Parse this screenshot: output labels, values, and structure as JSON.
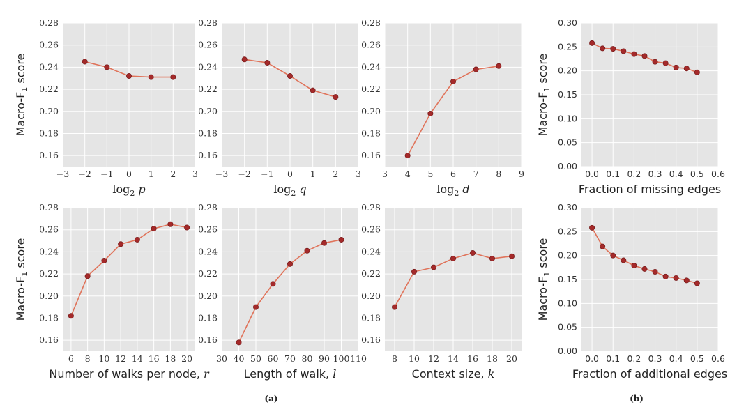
{
  "figure_labels": {
    "a": "(a)",
    "b": "(b)"
  },
  "chart_data": [
    {
      "id": "p",
      "type": "line",
      "xlabel": "log2 p",
      "xlabel_main": "log",
      "xlabel_sub": "2",
      "xlabel_var": " p",
      "ylabel": "Macro-F1 score",
      "xlim": [
        -3,
        3
      ],
      "ylim": [
        0.15,
        0.28
      ],
      "xticks": [
        "−3",
        "−2",
        "−1",
        "0",
        "1",
        "2",
        "3"
      ],
      "yticks": [
        "0.16",
        "0.18",
        "0.20",
        "0.22",
        "0.24",
        "0.26",
        "0.28"
      ],
      "x": [
        -2,
        -1,
        0,
        1,
        2
      ],
      "y": [
        0.245,
        0.24,
        0.232,
        0.231,
        0.231
      ]
    },
    {
      "id": "q",
      "type": "line",
      "xlabel": "log2 q",
      "xlabel_main": "log",
      "xlabel_sub": "2",
      "xlabel_var": " q",
      "ylabel": "",
      "xlim": [
        -3,
        3
      ],
      "ylim": [
        0.15,
        0.28
      ],
      "xticks": [
        "−3",
        "−2",
        "−1",
        "0",
        "1",
        "2",
        "3"
      ],
      "yticks": [
        "0.16",
        "0.18",
        "0.20",
        "0.22",
        "0.24",
        "0.26",
        "0.28"
      ],
      "x": [
        -2,
        -1,
        0,
        1,
        2
      ],
      "y": [
        0.247,
        0.244,
        0.232,
        0.219,
        0.213
      ]
    },
    {
      "id": "d",
      "type": "line",
      "xlabel": "log2 d",
      "xlabel_main": "log",
      "xlabel_sub": "2",
      "xlabel_var": " d",
      "ylabel": "",
      "xlim": [
        3,
        9
      ],
      "ylim": [
        0.15,
        0.28
      ],
      "xticks": [
        "3",
        "4",
        "5",
        "6",
        "7",
        "8",
        "9"
      ],
      "yticks": [
        "0.16",
        "0.18",
        "0.20",
        "0.22",
        "0.24",
        "0.26",
        "0.28"
      ],
      "x": [
        4,
        5,
        6,
        7,
        8
      ],
      "y": [
        0.16,
        0.198,
        0.227,
        0.238,
        0.241
      ]
    },
    {
      "id": "missing1",
      "type": "line",
      "xlabel": "Fraction of missing edges",
      "ylabel": "Macro-F1 score",
      "xlim": [
        -0.05,
        0.6
      ],
      "ylim": [
        0.0,
        0.3
      ],
      "xticks": [
        "0.0",
        "0.1",
        "0.2",
        "0.3",
        "0.4",
        "0.5",
        "0.6"
      ],
      "yticks": [
        "0.00",
        "0.05",
        "0.10",
        "0.15",
        "0.20",
        "0.25",
        "0.30"
      ],
      "x": [
        0.0,
        0.05,
        0.1,
        0.15,
        0.2,
        0.25,
        0.3,
        0.35,
        0.4,
        0.45,
        0.5
      ],
      "y": [
        0.258,
        0.247,
        0.246,
        0.241,
        0.235,
        0.231,
        0.219,
        0.216,
        0.207,
        0.205,
        0.197
      ]
    },
    {
      "id": "r",
      "type": "line",
      "xlabel": "Number of walks per node, r",
      "xlabel_main": "Number of walks per node,",
      "xlabel_var": " r",
      "ylabel": "Macro-F1 score",
      "xlim": [
        5,
        21
      ],
      "ylim": [
        0.15,
        0.28
      ],
      "xticks": [
        "6",
        "8",
        "10",
        "12",
        "14",
        "16",
        "18",
        "20"
      ],
      "yticks": [
        "0.16",
        "0.18",
        "0.20",
        "0.22",
        "0.24",
        "0.26",
        "0.28"
      ],
      "x": [
        6,
        8,
        10,
        12,
        14,
        16,
        18,
        20
      ],
      "y": [
        0.182,
        0.218,
        0.232,
        0.247,
        0.251,
        0.261,
        0.265,
        0.262
      ]
    },
    {
      "id": "l",
      "type": "line",
      "xlabel": "Length of walk, l",
      "xlabel_main": "Length of walk,",
      "xlabel_var": " l",
      "ylabel": "",
      "xlim": [
        30,
        110
      ],
      "ylim": [
        0.15,
        0.28
      ],
      "xticks": [
        "30",
        "40",
        "50",
        "60",
        "70",
        "80",
        "90",
        "100",
        "110"
      ],
      "yticks": [
        "0.16",
        "0.18",
        "0.20",
        "0.22",
        "0.24",
        "0.26",
        "0.28"
      ],
      "x": [
        40,
        50,
        60,
        70,
        80,
        90,
        100
      ],
      "y": [
        0.158,
        0.19,
        0.211,
        0.229,
        0.241,
        0.248,
        0.251
      ]
    },
    {
      "id": "k",
      "type": "line",
      "xlabel": "Context size, k",
      "xlabel_main": "Context size,",
      "xlabel_var": " k",
      "ylabel": "",
      "xlim": [
        7,
        21
      ],
      "ylim": [
        0.15,
        0.28
      ],
      "xticks": [
        "8",
        "10",
        "12",
        "14",
        "16",
        "18",
        "20"
      ],
      "yticks": [
        "0.16",
        "0.18",
        "0.20",
        "0.22",
        "0.24",
        "0.26",
        "0.28"
      ],
      "x": [
        8,
        10,
        12,
        14,
        16,
        18,
        20
      ],
      "y": [
        0.19,
        0.222,
        0.226,
        0.234,
        0.239,
        0.234,
        0.236
      ]
    },
    {
      "id": "missing2",
      "type": "line",
      "xlabel": "Fraction of additional edges",
      "ylabel": "Macro-F1 score",
      "xlim": [
        -0.05,
        0.6
      ],
      "ylim": [
        0.0,
        0.3
      ],
      "xticks": [
        "0.0",
        "0.1",
        "0.2",
        "0.3",
        "0.4",
        "0.5",
        "0.6"
      ],
      "yticks": [
        "0.00",
        "0.05",
        "0.10",
        "0.15",
        "0.20",
        "0.25",
        "0.30"
      ],
      "x": [
        0.0,
        0.05,
        0.1,
        0.15,
        0.2,
        0.25,
        0.3,
        0.35,
        0.4,
        0.45,
        0.5
      ],
      "y": [
        0.258,
        0.219,
        0.2,
        0.19,
        0.179,
        0.172,
        0.166,
        0.156,
        0.153,
        0.148,
        0.142
      ]
    }
  ],
  "colors": {
    "panel_bg": "#e5e5e5",
    "line": "#e0735a",
    "marker": "#a52a2a",
    "grid": "#ffffff"
  }
}
